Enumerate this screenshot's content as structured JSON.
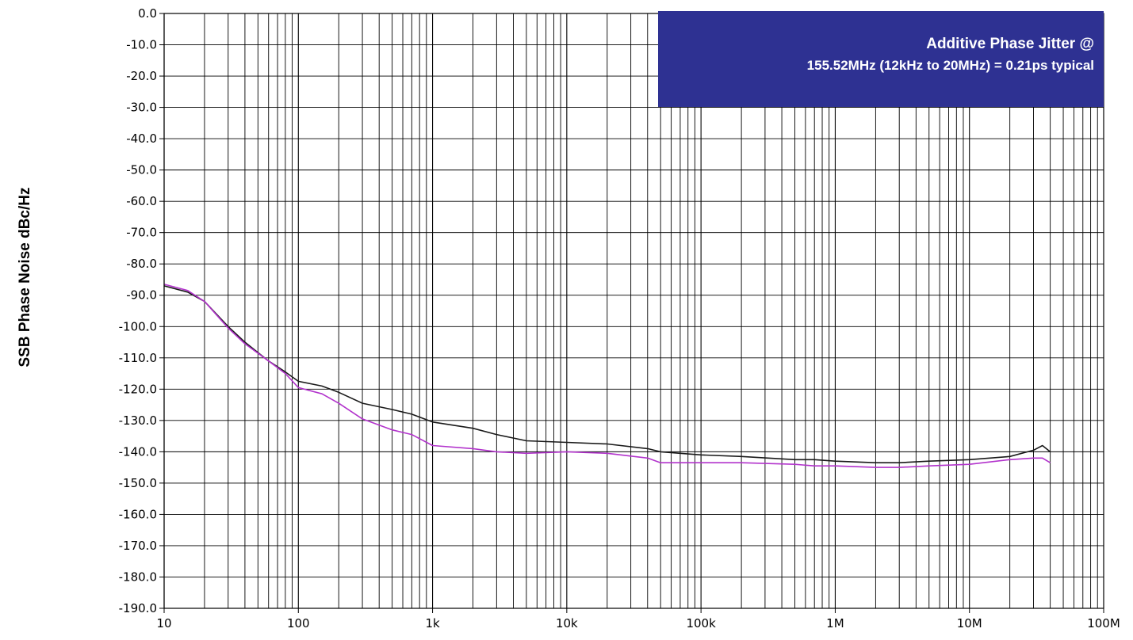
{
  "chart_data": {
    "type": "line",
    "title": "",
    "xlabel": "",
    "ylabel": "SSB Phase Noise dBc/Hz",
    "xscale": "log",
    "xlim": [
      10,
      100000000
    ],
    "ylim": [
      -190,
      0
    ],
    "grid": true,
    "x_tick_labels": [
      {
        "value": 10,
        "label": "10"
      },
      {
        "value": 100,
        "label": "100"
      },
      {
        "value": 1000,
        "label": "1k"
      },
      {
        "value": 10000,
        "label": "10k"
      },
      {
        "value": 100000,
        "label": "100k"
      },
      {
        "value": 1000000,
        "label": "1M"
      },
      {
        "value": 10000000,
        "label": "10M"
      },
      {
        "value": 100000000,
        "label": "100M"
      }
    ],
    "y_tick_labels": [
      "0.0",
      "-10.0",
      "-20.0",
      "-30.0",
      "-40.0",
      "-50.0",
      "-60.0",
      "-70.0",
      "-80.0",
      "-90.0",
      "-100.0",
      "-110.0",
      "-120.0",
      "-130.0",
      "-140.0",
      "-150.0",
      "-160.0",
      "-170.0",
      "-180.0",
      "-190.0"
    ],
    "annotation": {
      "line1": "Additive Phase Jitter @",
      "line2": "155.52MHz (12kHz to 20MHz) = 0.21ps typical"
    },
    "series": [
      {
        "color": "#1a1a1a",
        "x": [
          10,
          15,
          20,
          30,
          40,
          60,
          80,
          100,
          150,
          200,
          300,
          500,
          700,
          1000,
          2000,
          3000,
          5000,
          10000,
          20000,
          40000,
          50000,
          100000,
          200000,
          500000,
          700000,
          1000000,
          2000000,
          3000000,
          5000000,
          10000000,
          20000000,
          30000000,
          35000000,
          40000000
        ],
        "y": [
          -87,
          -89,
          -92,
          -100,
          -105,
          -111,
          -114.5,
          -117.5,
          -119,
          -121,
          -124.5,
          -126.5,
          -128,
          -130.5,
          -132.5,
          -134.5,
          -136.5,
          -137,
          -137.5,
          -139,
          -140,
          -141,
          -141.5,
          -142.5,
          -142.5,
          -143,
          -143.5,
          -143.5,
          -143,
          -142.5,
          -141.5,
          -139.5,
          -138,
          -140
        ]
      },
      {
        "color": "#b233cc",
        "x": [
          10,
          15,
          20,
          30,
          40,
          60,
          80,
          100,
          150,
          200,
          300,
          500,
          700,
          1000,
          2000,
          3000,
          5000,
          10000,
          20000,
          40000,
          50000,
          100000,
          200000,
          500000,
          700000,
          1000000,
          2000000,
          3000000,
          5000000,
          10000000,
          20000000,
          30000000,
          35000000,
          40000000
        ],
        "y": [
          -86.5,
          -88.5,
          -92,
          -100.5,
          -105.5,
          -111,
          -115,
          -119.5,
          -121.5,
          -124.5,
          -129.5,
          -133,
          -134.5,
          -138,
          -139,
          -140,
          -140.5,
          -140,
          -140.5,
          -142,
          -143.5,
          -143.5,
          -143.5,
          -144,
          -144.5,
          -144.5,
          -145,
          -145,
          -144.5,
          -144,
          -142.5,
          -142,
          -142,
          -143.5
        ]
      }
    ]
  }
}
